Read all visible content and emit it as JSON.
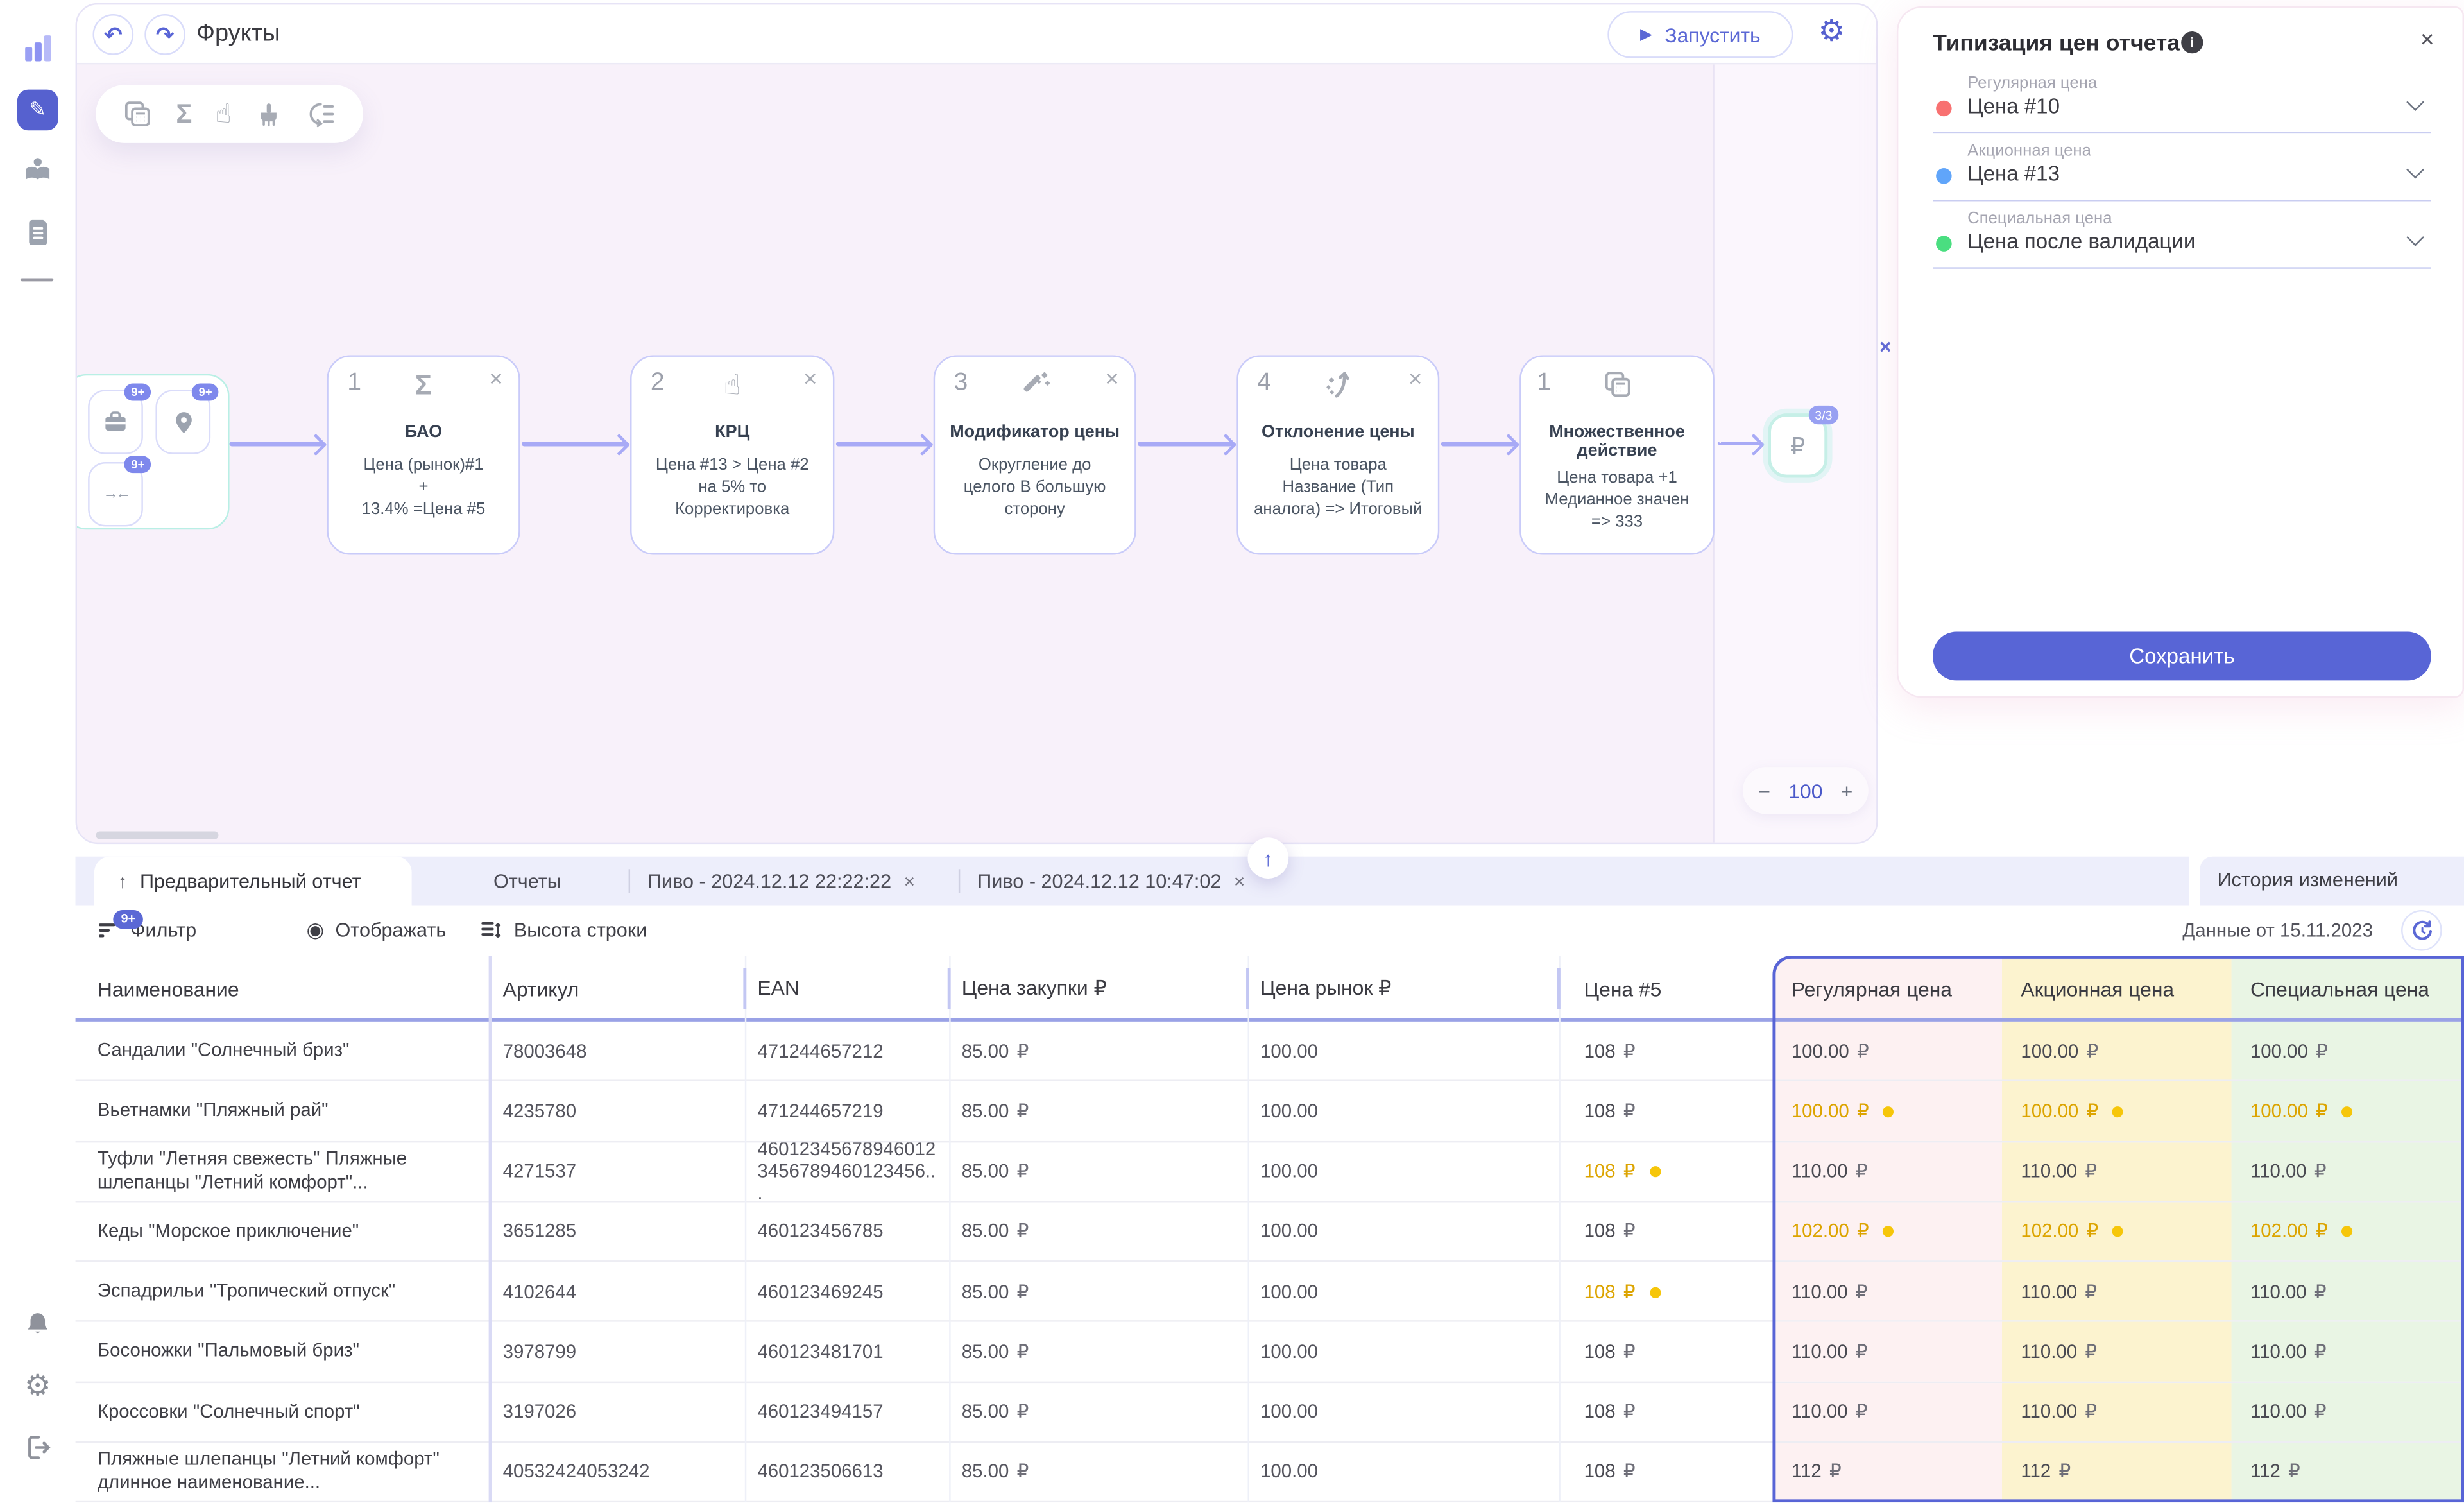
{
  "colors": {
    "accent": "#5864d6",
    "arrow": "#a8aaf6",
    "warn_text": "#dca400",
    "warn_dot": "#f6c60a",
    "regular_col_bg": "#fdf1f2",
    "promo_col_bg": "#fcf3cf",
    "special_col_bg": "#e9f5e4",
    "regular_dot": "#f87171",
    "promo_dot": "#60a5fa",
    "special_dot": "#4ade80"
  },
  "glyphs": {
    "undo": "↶",
    "redo": "↷",
    "play": "▶",
    "gear": "⚙",
    "sigma": "Σ",
    "touch": "☝",
    "close": "×",
    "up_arrow": "↑",
    "eye": "◉",
    "minus": "−",
    "plus": "+",
    "ruble": "₽",
    "pencil": "✎",
    "merge": "→←",
    "info": "i"
  },
  "header": {
    "title": "Фрукты",
    "run_label": "Запустить"
  },
  "canvas": {
    "source_badges": [
      "9+",
      "9+",
      "9+"
    ],
    "nodes": [
      {
        "index": "1",
        "icon": "sigma",
        "title": "БАО",
        "lines": [
          "Цена (рынок)#1",
          "+",
          "13.4% =Цена #5"
        ]
      },
      {
        "index": "2",
        "icon": "touch",
        "title": "КРЦ",
        "lines": [
          "Цена #13 > Цена #2",
          "на 5% то",
          "Корректировка"
        ]
      },
      {
        "index": "3",
        "icon": "wand",
        "title": "Модификатор цены",
        "lines": [
          "Округление до",
          "целого В большую",
          "сторону"
        ]
      },
      {
        "index": "4",
        "icon": "trend",
        "title": "Отклонение цены",
        "lines": [
          "Цена товара",
          "Название (Тип",
          "аналога) => Итоговый"
        ]
      },
      {
        "index": "1",
        "icon": "calculator",
        "title": "Множественное действие",
        "lines": [
          "Цена товара +1",
          "Медианное значен",
          "=> 333"
        ]
      }
    ],
    "result_node": {
      "symbol": "₽",
      "badge": "3/3"
    },
    "zoom": {
      "minus": "−",
      "value": "100",
      "plus": "+"
    }
  },
  "panel": {
    "title": "Типизация цен отчета",
    "fields": [
      {
        "label": "Регулярная цена",
        "value": "Цена #10"
      },
      {
        "label": "Акционная цена",
        "value": "Цена #13"
      },
      {
        "label": "Специальная цена",
        "value": "Цена после валидации"
      }
    ],
    "save_label": "Сохранить"
  },
  "tabs": {
    "active": "Предварительный отчет",
    "items": [
      "Отчеты",
      "Пиво - 2024.12.12 22:22:22",
      "Пиво - 2024.12.12 10:47:02"
    ],
    "history": "История изменений"
  },
  "grid_toolbar": {
    "filter": "Фильтр",
    "filter_badge": "9+",
    "display": "Отображать",
    "row_height": "Высота строки",
    "data_from": "Данные от 15.11.2023"
  },
  "table": {
    "columns": [
      "Наименование",
      "Артикул",
      "EAN",
      "Цена закупки ₽",
      "Цена рынок ₽",
      "Цена #5",
      "Регулярная цена",
      "Акционная цена",
      "Специальная цена"
    ],
    "rows": [
      {
        "name": "Сандалии \"Солнечный бриз\"",
        "sku": "78003648",
        "ean": "471244657212",
        "purchase": "85.00",
        "market": "100.00",
        "p5": "108",
        "p5_warn": false,
        "typed": "100.00",
        "typed_warn": false
      },
      {
        "name": "Вьетнамки \"Пляжный рай\"",
        "sku": "4235780",
        "ean": "471244657219",
        "purchase": "85.00",
        "market": "100.00",
        "p5": "108",
        "p5_warn": false,
        "typed": "100.00",
        "typed_warn": true
      },
      {
        "name": "Туфли \"Летняя свежесть\" Пляжные шлепанцы \"Летний комфорт\"...",
        "sku": "4271537",
        "ean": "46012345678946012 3456789460123456...",
        "purchase": "85.00",
        "market": "100.00",
        "p5": "108",
        "p5_warn": true,
        "typed": "110.00",
        "typed_warn": false
      },
      {
        "name": "Кеды \"Морское приключение\"",
        "sku": "3651285",
        "ean": "460123456785",
        "purchase": "85.00",
        "market": "100.00",
        "p5": "108",
        "p5_warn": false,
        "typed": "102.00",
        "typed_warn": true
      },
      {
        "name": "Эспадрильи \"Тропический отпуск\"",
        "sku": "4102644",
        "ean": "460123469245",
        "purchase": "85.00",
        "market": "100.00",
        "p5": "108",
        "p5_warn": true,
        "typed": "110.00",
        "typed_warn": false
      },
      {
        "name": "Босоножки \"Пальмовый бриз\"",
        "sku": "3978799",
        "ean": "460123481701",
        "purchase": "85.00",
        "market": "100.00",
        "p5": "108",
        "p5_warn": false,
        "typed": "110.00",
        "typed_warn": false
      },
      {
        "name": "Кроссовки \"Солнечный спорт\"",
        "sku": "3197026",
        "ean": "460123494157",
        "purchase": "85.00",
        "market": "100.00",
        "p5": "108",
        "p5_warn": false,
        "typed": "110.00",
        "typed_warn": false
      },
      {
        "name": "Пляжные шлепанцы \"Летний комфорт\" длинное наименование...",
        "sku": "40532424053242",
        "ean": "460123506613",
        "purchase": "85.00",
        "market": "100.00",
        "p5": "108",
        "p5_warn": false,
        "typed": "112",
        "typed_warn": false
      }
    ]
  }
}
